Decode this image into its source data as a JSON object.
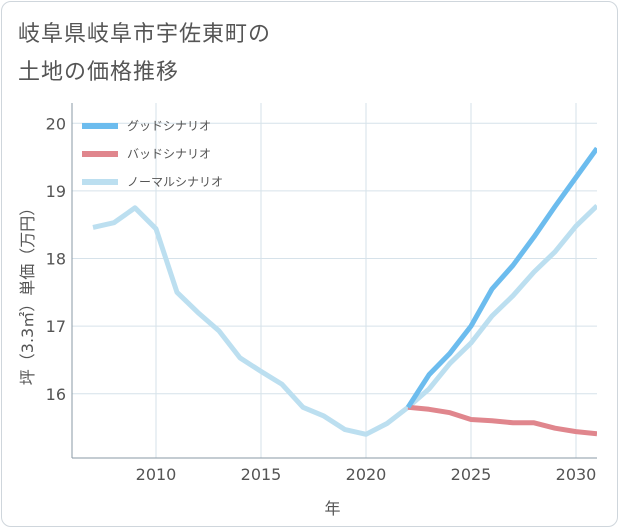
{
  "title": "岐阜県岐阜市宇佐東町の\n土地の価格推移",
  "chart_data": {
    "type": "line",
    "title": "岐阜県岐阜市宇佐東町の\n土地の価格推移",
    "xlabel": "年",
    "ylabel": "坪（3.3㎡）単価（万円）",
    "xlim": [
      2006,
      2031
    ],
    "ylim": [
      15.05,
      20.3
    ],
    "xticks": [
      2010,
      2015,
      2020,
      2025,
      2030
    ],
    "yticks": [
      16,
      17,
      18,
      19,
      20
    ],
    "grid": true,
    "legend_position": "top-left",
    "series": [
      {
        "name": "グッドシナリオ",
        "color": "#6cbcee",
        "x": [
          2022,
          2023,
          2024,
          2025,
          2026,
          2027,
          2028,
          2029,
          2030,
          2031
        ],
        "y": [
          15.8,
          16.28,
          16.6,
          17.0,
          17.55,
          17.9,
          18.32,
          18.77,
          19.2,
          19.63
        ]
      },
      {
        "name": "バッドシナリオ",
        "color": "#e0868d",
        "x": [
          2022,
          2023,
          2024,
          2025,
          2026,
          2027,
          2028,
          2029,
          2030,
          2031
        ],
        "y": [
          15.8,
          15.77,
          15.72,
          15.62,
          15.6,
          15.57,
          15.57,
          15.49,
          15.44,
          15.41
        ]
      },
      {
        "name": "ノーマルシナリオ",
        "color": "#bcdff0",
        "x": [
          2007,
          2008,
          2009,
          2010,
          2011,
          2012,
          2013,
          2014,
          2015,
          2016,
          2017,
          2018,
          2019,
          2020,
          2021,
          2022,
          2023,
          2024,
          2025,
          2026,
          2027,
          2028,
          2029,
          2030,
          2031
        ],
        "y": [
          18.46,
          18.53,
          18.75,
          18.44,
          17.5,
          17.2,
          16.93,
          16.53,
          16.33,
          16.14,
          15.8,
          15.67,
          15.47,
          15.4,
          15.56,
          15.8,
          16.07,
          16.45,
          16.75,
          17.15,
          17.45,
          17.8,
          18.1,
          18.48,
          18.78
        ]
      }
    ]
  }
}
